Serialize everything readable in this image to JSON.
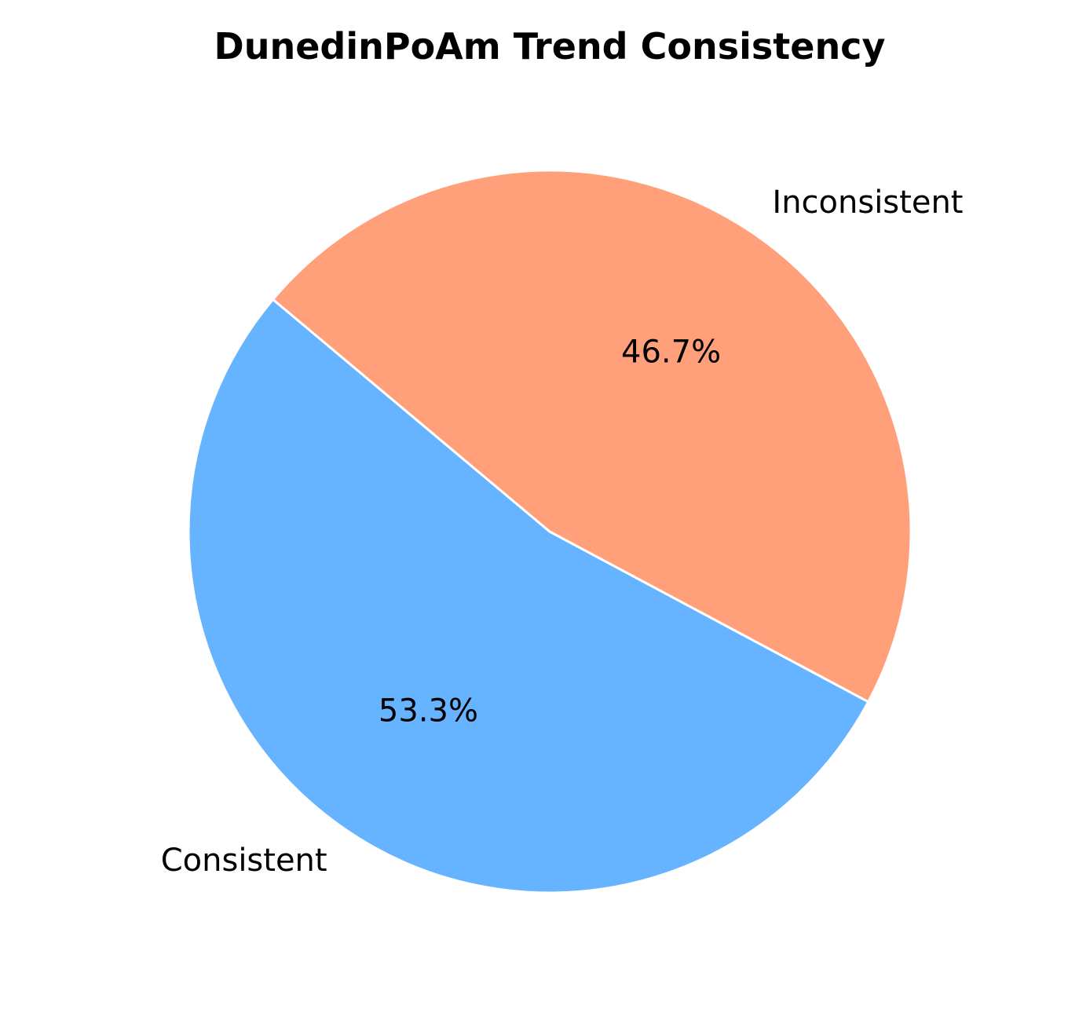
{
  "chart_data": {
    "type": "pie",
    "title": "DunedinPoAm Trend Consistency",
    "slices": [
      {
        "label": "Consistent",
        "value": 53.3,
        "pct_label": "53.3%",
        "color": "#66b3ff"
      },
      {
        "label": "Inconsistent",
        "value": 46.7,
        "pct_label": "46.7%",
        "color": "#ffa07a"
      }
    ],
    "start_angle_deg": 140,
    "direction": "counterclockwise",
    "edge_color": "#ffffff"
  }
}
